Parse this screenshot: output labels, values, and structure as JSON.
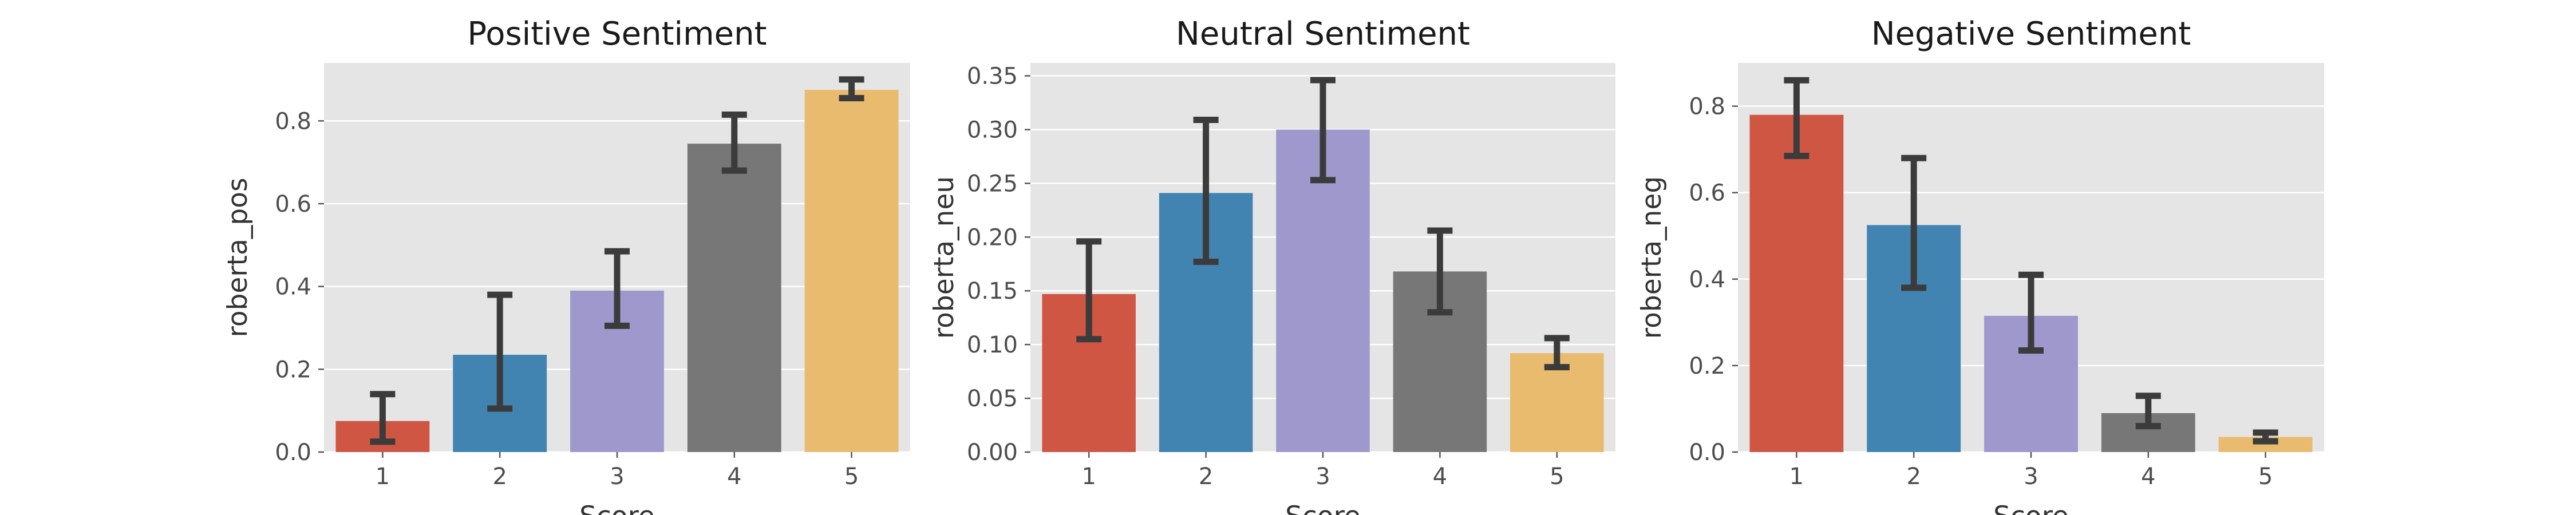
{
  "colors": {
    "panel_bg": "#e5e5e5",
    "grid": "#ffffff",
    "errorbar": "#3b3b3b",
    "bars": [
      "#cf5643",
      "#4184b2",
      "#9e98cc",
      "#777777",
      "#e9bb6e"
    ]
  },
  "chart_data": [
    {
      "type": "bar",
      "title": "Positive Sentiment",
      "xlabel": "Score",
      "ylabel": "roberta_pos",
      "categories": [
        "1",
        "2",
        "3",
        "4",
        "5"
      ],
      "values": [
        0.075,
        0.235,
        0.39,
        0.745,
        0.875
      ],
      "error_low": [
        0.025,
        0.105,
        0.305,
        0.68,
        0.855
      ],
      "error_high": [
        0.14,
        0.38,
        0.485,
        0.815,
        0.9
      ],
      "ylim": [
        0,
        0.94
      ],
      "yticks": [
        0.0,
        0.2,
        0.4,
        0.6,
        0.8
      ],
      "ytick_labels": [
        "0.0",
        "0.2",
        "0.4",
        "0.6",
        "0.8"
      ],
      "grid": true
    },
    {
      "type": "bar",
      "title": "Neutral Sentiment",
      "xlabel": "Score",
      "ylabel": "roberta_neu",
      "categories": [
        "1",
        "2",
        "3",
        "4",
        "5"
      ],
      "values": [
        0.147,
        0.241,
        0.3,
        0.168,
        0.092
      ],
      "error_low": [
        0.105,
        0.177,
        0.253,
        0.13,
        0.079
      ],
      "error_high": [
        0.196,
        0.309,
        0.346,
        0.206,
        0.106
      ],
      "ylim": [
        0,
        0.362
      ],
      "yticks": [
        0.0,
        0.05,
        0.1,
        0.15,
        0.2,
        0.25,
        0.3,
        0.35
      ],
      "ytick_labels": [
        "0.00",
        "0.05",
        "0.10",
        "0.15",
        "0.20",
        "0.25",
        "0.30",
        "0.35"
      ],
      "grid": true
    },
    {
      "type": "bar",
      "title": "Negative Sentiment",
      "xlabel": "Score",
      "ylabel": "roberta_neg",
      "categories": [
        "1",
        "2",
        "3",
        "4",
        "5"
      ],
      "values": [
        0.78,
        0.525,
        0.315,
        0.09,
        0.035
      ],
      "error_low": [
        0.685,
        0.38,
        0.235,
        0.06,
        0.025
      ],
      "error_high": [
        0.86,
        0.68,
        0.41,
        0.13,
        0.045
      ],
      "ylim": [
        0,
        0.9
      ],
      "yticks": [
        0.0,
        0.2,
        0.4,
        0.6,
        0.8
      ],
      "ytick_labels": [
        "0.0",
        "0.2",
        "0.4",
        "0.6",
        "0.8"
      ],
      "grid": true
    }
  ]
}
